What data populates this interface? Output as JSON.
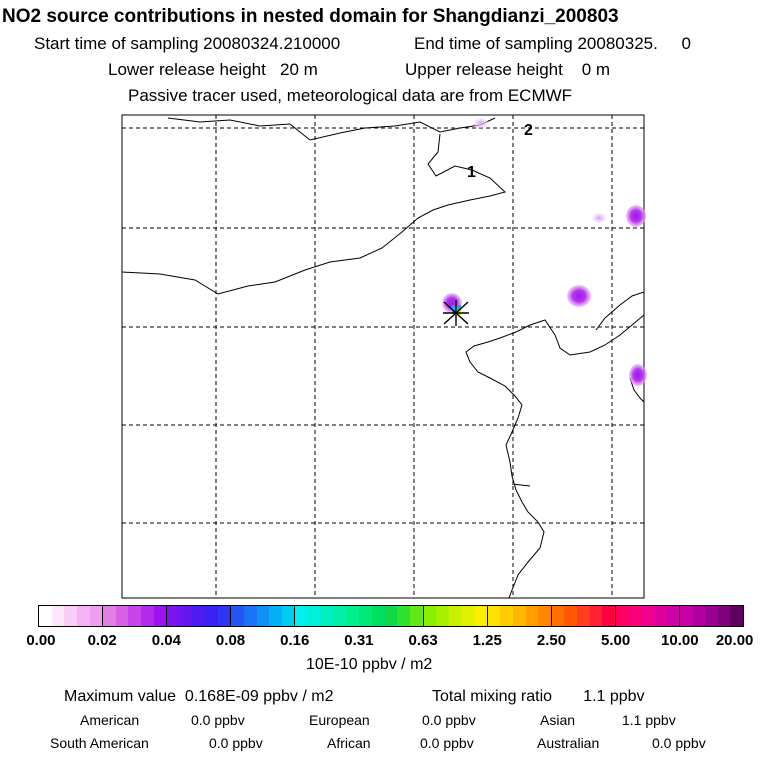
{
  "header": {
    "title": "NO2 source contributions in nested domain for Shangdianzi_200803",
    "start": "Start time of sampling 20080324.210000",
    "end": "End time of sampling 20080325.     0",
    "lower": "Lower release height   20 m",
    "upper": "Upper release height    0 m",
    "note": "Passive tracer used, meteorological data are from ECMWF"
  },
  "map": {
    "contour_labels": [
      "2",
      "1"
    ],
    "receptor": "Shangdianzi"
  },
  "colorbar": {
    "ticks": [
      "0.00",
      "0.02",
      "0.04",
      "0.08",
      "0.16",
      "0.31",
      "0.63",
      "1.25",
      "2.50",
      "5.00",
      "10.00",
      "20.00"
    ],
    "colors": [
      [
        "#ffffff",
        "#fde7fd",
        "#f9cdf9",
        "#f5b3f5",
        "#f09cf0"
      ],
      [
        "#e47fe4",
        "#d861e8",
        "#c845ec",
        "#b32cee",
        "#9c12f0"
      ],
      [
        "#7a14ee",
        "#6418ef",
        "#4c1cf0",
        "#3a22f2",
        "#2e36f4"
      ],
      [
        "#2454f4",
        "#1a72f4",
        "#1090f4",
        "#08aef4",
        "#00ccf4"
      ],
      [
        "#00f0f0",
        "#00f0d8",
        "#00f0c0",
        "#00f0a8",
        "#00f090"
      ],
      [
        "#00e878",
        "#00e060",
        "#10d848",
        "#30e030",
        "#60e818"
      ],
      [
        "#88f000",
        "#a8f000",
        "#c8f000",
        "#e0f000",
        "#f8f000"
      ],
      [
        "#ffe000",
        "#ffcc00",
        "#ffb800",
        "#ffa000",
        "#ff8800"
      ],
      [
        "#ff7000",
        "#ff5800",
        "#ff4020",
        "#ff2030",
        "#ff0040"
      ],
      [
        "#ff0060",
        "#f80078",
        "#f0008c",
        "#e0009c",
        "#d000a8"
      ],
      [
        "#c800a8",
        "#b000a0",
        "#980090",
        "#800080",
        "#600060"
      ]
    ],
    "units": "10E-10 ppbv / m2"
  },
  "footer": {
    "max_value": "Maximum value  0.168E-09 ppbv / m2",
    "total": "Total mixing ratio       1.1 ppbv",
    "regions": [
      {
        "label": "American",
        "value": "0.0 ppbv"
      },
      {
        "label": "European",
        "value": "0.0 ppbv"
      },
      {
        "label": "Asian",
        "value": "1.1 ppbv"
      },
      {
        "label": "South American",
        "value": "0.0 ppbv"
      },
      {
        "label": "African",
        "value": "0.0 ppbv"
      },
      {
        "label": "Australian",
        "value": "0.0 ppbv"
      }
    ]
  }
}
